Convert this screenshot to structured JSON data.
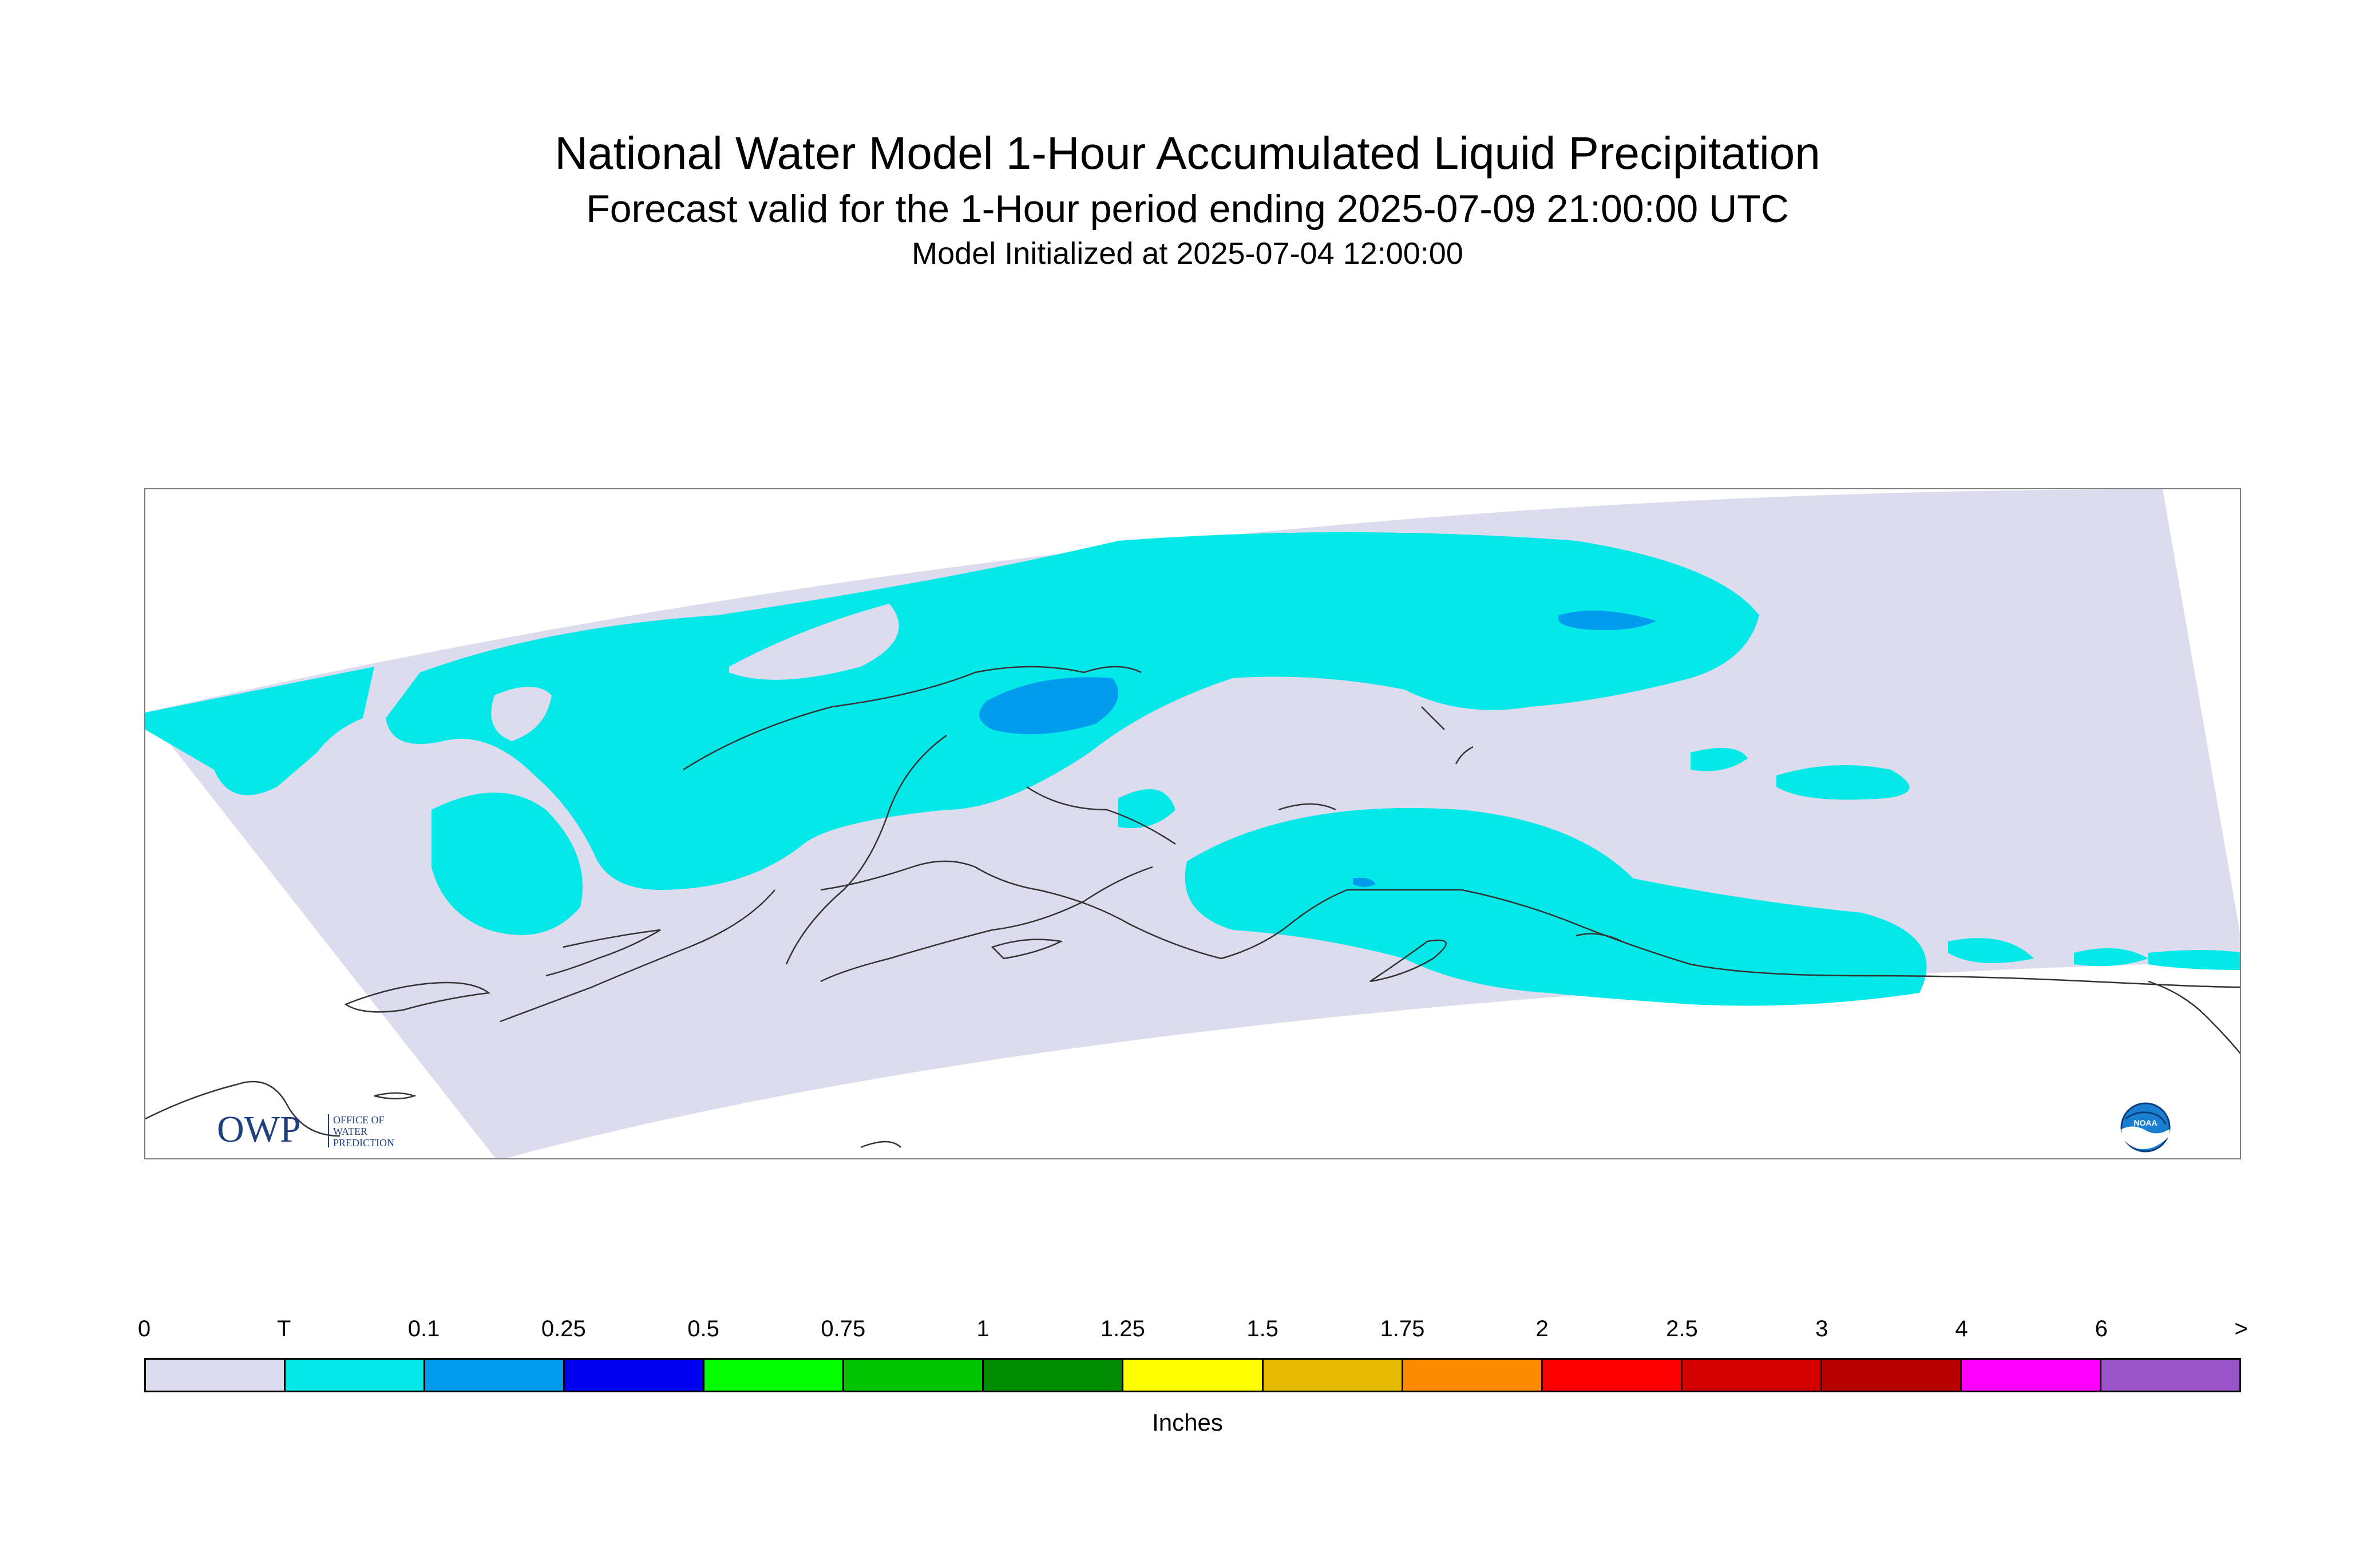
{
  "header": {
    "title": "National Water Model 1-Hour Accumulated Liquid Precipitation",
    "subtitle": "Forecast valid for the 1-Hour period ending 2025-07-09 21:00:00 UTC",
    "initialized": "Model Initialized at 2025-07-04 12:00:00"
  },
  "map": {
    "region": "Alaska",
    "background_color": "#dcdcee",
    "coastline_color": "#333333",
    "precip_trace_color": "#05e8e8",
    "precip_01_color": "#029ced"
  },
  "logos": {
    "owp_text": "OWP",
    "owp_sub": [
      "OFFICE OF",
      "WATER",
      "PREDICTION"
    ],
    "noaa_text": "NOAA"
  },
  "legend": {
    "labels": [
      "0",
      "T",
      "0.1",
      "0.25",
      "0.5",
      "0.75",
      "1",
      "1.25",
      "1.5",
      "1.75",
      "2",
      "2.5",
      "3",
      "4",
      "6",
      ">"
    ],
    "colors": [
      "#dcdcee",
      "#05e8e8",
      "#029ced",
      "#0000f0",
      "#00ff00",
      "#00c400",
      "#008c00",
      "#ffff00",
      "#e5bc00",
      "#ff8c00",
      "#ff0000",
      "#d40000",
      "#b80000",
      "#ff00ff",
      "#9955c8"
    ],
    "units": "Inches"
  }
}
